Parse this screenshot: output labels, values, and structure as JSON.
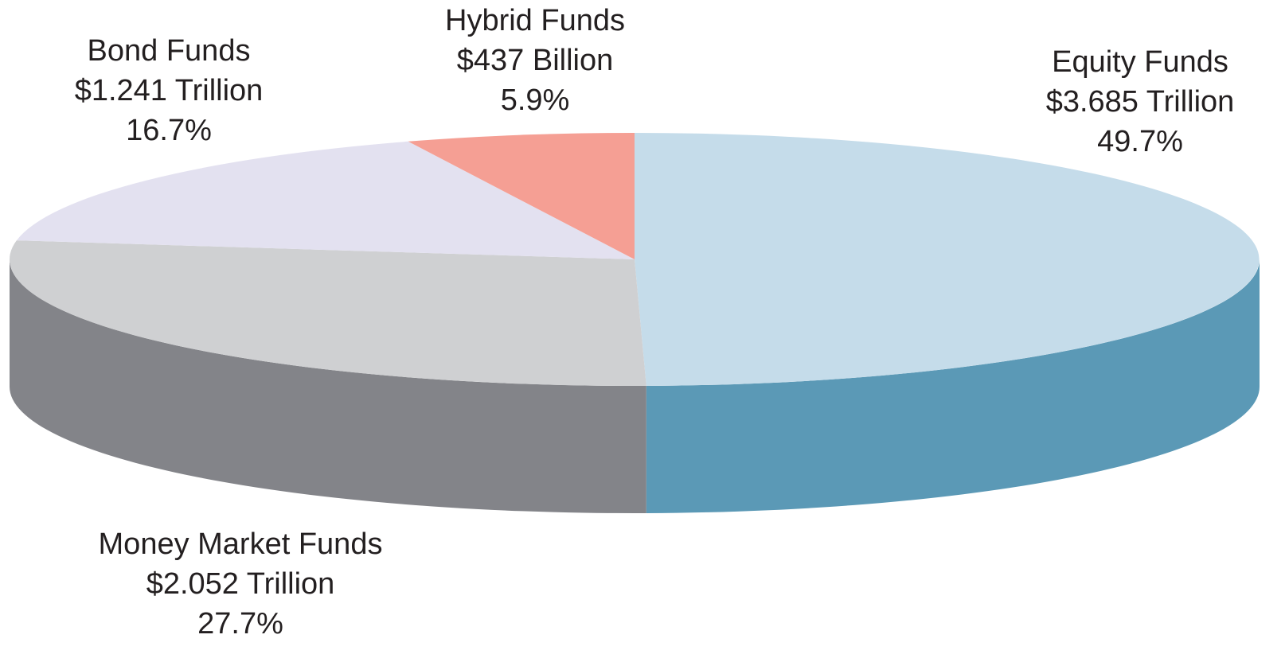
{
  "chart_data": {
    "type": "pie",
    "categories": [
      "Equity Funds",
      "Money Market Funds",
      "Bond Funds",
      "Hybrid Funds"
    ],
    "values": [
      49.7,
      27.7,
      16.7,
      5.9
    ],
    "value_labels": [
      "49.7%",
      "27.7%",
      "16.7%",
      "5.9%"
    ],
    "amount_labels": [
      "$3.685 Trillion",
      "$2.052 Trillion",
      "$1.241 Trillion",
      "$437 Billion"
    ],
    "colors": [
      "#c5dcea",
      "#cfd0d2",
      "#e3e1f0",
      "#f59f94"
    ],
    "side_colors": [
      "#5b99b6",
      "#838489",
      "#b9b7c6",
      "#c97d73"
    ]
  }
}
